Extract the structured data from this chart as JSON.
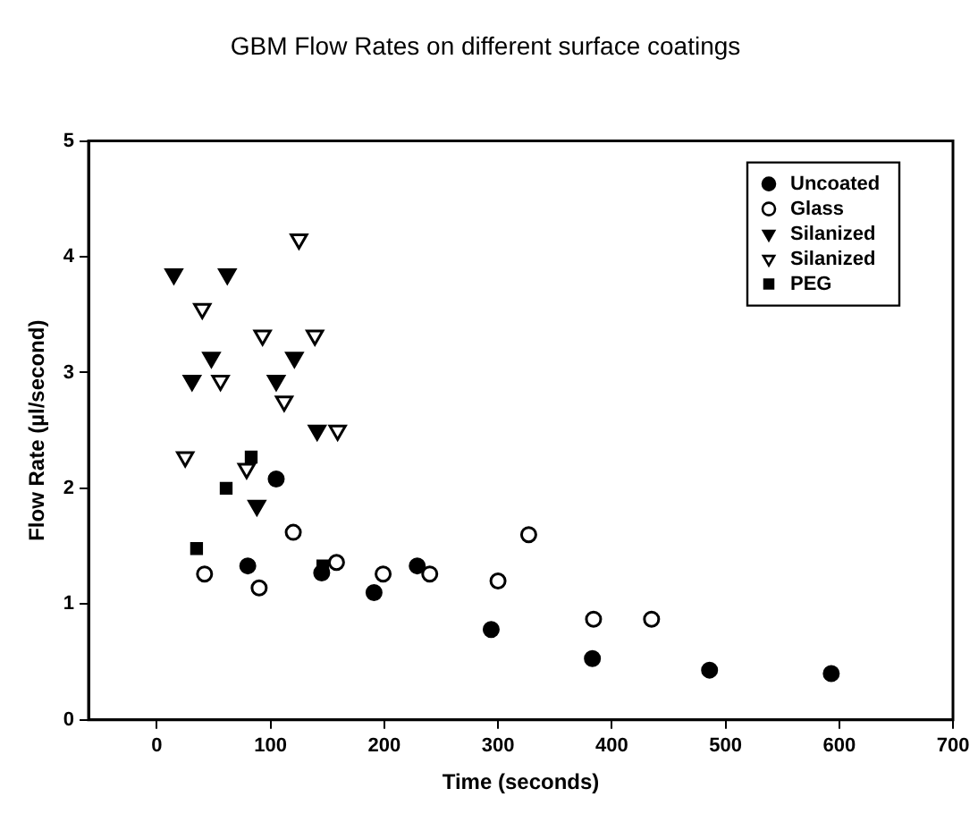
{
  "chart_data": {
    "type": "scatter",
    "title": "GBM Flow Rates on different surface coatings",
    "xlabel": "Time (seconds)",
    "ylabel": "Flow Rate (µl/second)",
    "xlim": [
      -60,
      700
    ],
    "xticks": [
      0,
      100,
      200,
      300,
      400,
      500,
      600,
      700
    ],
    "ylim": [
      0,
      5
    ],
    "yticks": [
      0,
      1,
      2,
      3,
      4,
      5
    ],
    "grid": false,
    "legend": "top right",
    "series": [
      {
        "name": "Uncoated",
        "color": "#000000",
        "marker": "circle",
        "x": [
          80,
          105,
          145,
          191,
          229,
          294,
          383,
          486,
          593
        ],
        "values": [
          1.33,
          2.08,
          1.27,
          1.1,
          1.33,
          0.78,
          0.53,
          0.43,
          0.4
        ]
      },
      {
        "name": "Glass",
        "color": "#ffffff",
        "marker": "circle",
        "x": [
          42,
          90,
          120,
          158,
          199,
          240,
          300,
          327,
          384,
          435
        ],
        "values": [
          1.26,
          1.14,
          1.62,
          1.36,
          1.26,
          1.26,
          1.2,
          1.6,
          0.87,
          0.87
        ]
      },
      {
        "name": "Silanized",
        "color": "#000000",
        "marker": "triangle",
        "x": [
          15,
          62,
          48,
          121,
          31,
          105,
          141,
          88
        ],
        "values": [
          3.85,
          3.85,
          3.13,
          3.13,
          2.93,
          2.93,
          2.5,
          1.85
        ]
      },
      {
        "name": "Silanized",
        "color": "#ffffff",
        "marker": "triangle",
        "x": [
          125,
          40,
          93,
          139,
          56,
          112,
          159,
          25,
          79
        ],
        "values": [
          4.15,
          3.55,
          3.32,
          3.32,
          2.93,
          2.75,
          2.5,
          2.27,
          2.17
        ]
      },
      {
        "name": "PEG",
        "color": "#000000",
        "marker": "square",
        "x": [
          83,
          61,
          35,
          146
        ],
        "values": [
          2.27,
          2.0,
          1.48,
          1.33
        ]
      }
    ]
  }
}
